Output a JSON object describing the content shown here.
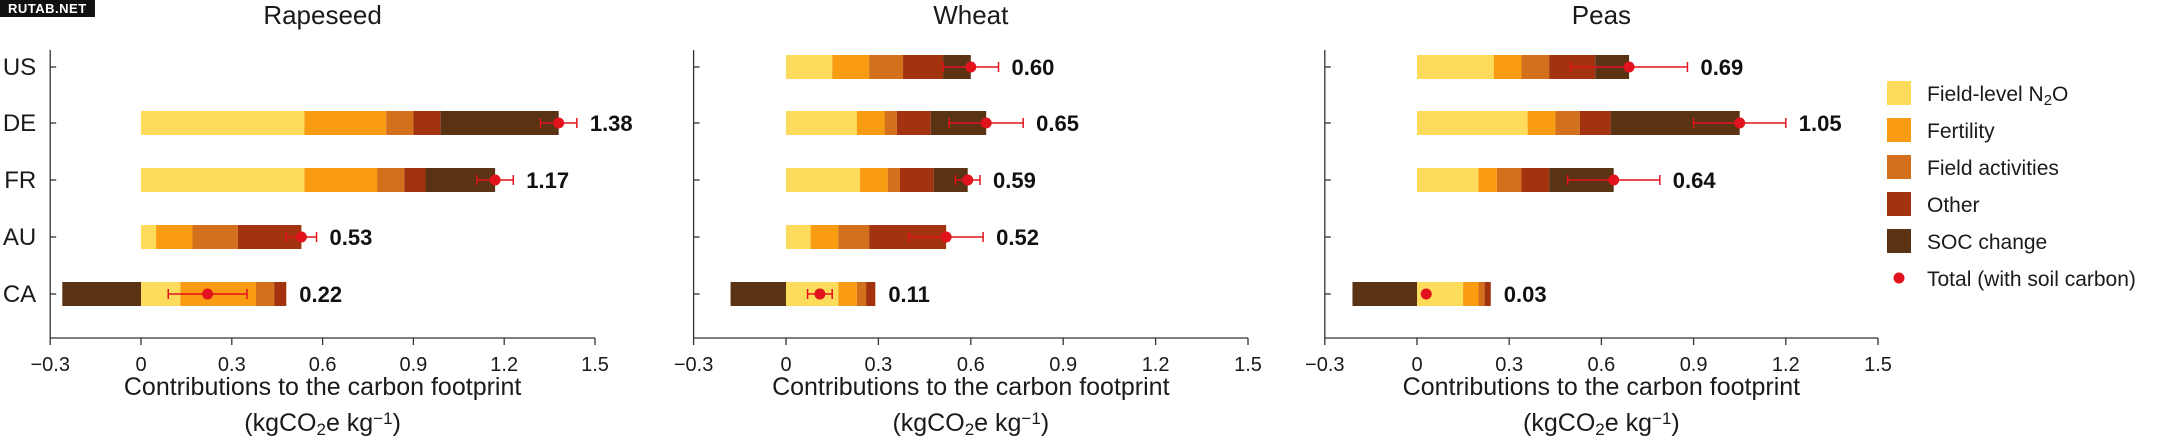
{
  "watermark": "RUTAB.NET",
  "colors": {
    "Field-level N2O": "#fddc5c",
    "Fertility": "#f99c12",
    "Field activities": "#d3701c",
    "Other": "#a2330e",
    "SOC change": "#5a3214",
    "Total (with soil carbon)": "#e2131d"
  },
  "legend": {
    "items": [
      {
        "label": "Field-level N",
        "sub": "2",
        "after": "O",
        "key": "Field-level N2O",
        "kind": "swatch"
      },
      {
        "label": "Fertility",
        "sub": "",
        "after": "",
        "key": "Fertility",
        "kind": "swatch"
      },
      {
        "label": "Field activities",
        "sub": "",
        "after": "",
        "key": "Field activities",
        "kind": "swatch"
      },
      {
        "label": "Other",
        "sub": "",
        "after": "",
        "key": "Other",
        "kind": "swatch"
      },
      {
        "label": "SOC change",
        "sub": "",
        "after": "",
        "key": "SOC change",
        "kind": "swatch"
      },
      {
        "label": "Total (with soil carbon)",
        "sub": "",
        "after": "",
        "key": "Total (with soil carbon)",
        "kind": "dot"
      }
    ]
  },
  "chart_data": [
    {
      "type": "bar",
      "orientation": "horizontal",
      "stacked": true,
      "title": "Rapeseed",
      "xlabel": "Contributions to the carbon footprint",
      "xlabel_unit": {
        "pre": "(kgCO",
        "sub": "2",
        "mid": "e kg",
        "sup": "−1",
        "post": ")"
      },
      "xlim": [
        -0.3,
        1.5
      ],
      "xticks": [
        "−0.3",
        "0",
        "0.3",
        "0.6",
        "0.9",
        "1.2",
        "1.5"
      ],
      "categories": [
        "US",
        "DE",
        "FR",
        "AU",
        "CA"
      ],
      "series": [
        {
          "name": "Field-level N2O",
          "values": [
            null,
            0.54,
            0.54,
            0.05,
            0.13
          ]
        },
        {
          "name": "Fertility",
          "values": [
            null,
            0.27,
            0.24,
            0.12,
            0.25
          ]
        },
        {
          "name": "Field activities",
          "values": [
            null,
            0.09,
            0.09,
            0.15,
            0.06
          ]
        },
        {
          "name": "Other",
          "values": [
            null,
            0.09,
            0.07,
            0.21,
            0.04
          ]
        },
        {
          "name": "SOC change",
          "values": [
            null,
            0.39,
            0.23,
            0.0,
            -0.26
          ]
        }
      ],
      "total": [
        null,
        1.38,
        1.17,
        0.53,
        0.22
      ],
      "error": [
        null,
        0.06,
        0.06,
        0.05,
        0.13
      ],
      "total_labels": [
        "",
        "1.38",
        "1.17",
        "0.53",
        "0.22"
      ]
    },
    {
      "type": "bar",
      "orientation": "horizontal",
      "stacked": true,
      "title": "Wheat",
      "xlabel": "Contributions to the carbon footprint",
      "xlabel_unit": {
        "pre": "(kgCO",
        "sub": "2",
        "mid": "e kg",
        "sup": "−1",
        "post": ")"
      },
      "xlim": [
        -0.3,
        1.5
      ],
      "xticks": [
        "−0.3",
        "0",
        "0.3",
        "0.6",
        "0.9",
        "1.2",
        "1.5"
      ],
      "categories": [
        "US",
        "DE",
        "FR",
        "AU",
        "CA"
      ],
      "series": [
        {
          "name": "Field-level N2O",
          "values": [
            0.15,
            0.23,
            0.24,
            0.08,
            0.17
          ]
        },
        {
          "name": "Fertility",
          "values": [
            0.12,
            0.09,
            0.09,
            0.09,
            0.06
          ]
        },
        {
          "name": "Field activities",
          "values": [
            0.11,
            0.04,
            0.04,
            0.1,
            0.03
          ]
        },
        {
          "name": "Other",
          "values": [
            0.13,
            0.11,
            0.11,
            0.25,
            0.03
          ]
        },
        {
          "name": "SOC change",
          "values": [
            0.09,
            0.18,
            0.11,
            0.0,
            -0.18
          ]
        }
      ],
      "total": [
        0.6,
        0.65,
        0.59,
        0.52,
        0.11
      ],
      "error": [
        0.09,
        0.12,
        0.04,
        0.12,
        0.04
      ],
      "total_labels": [
        "0.60",
        "0.65",
        "0.59",
        "0.52",
        "0.11"
      ]
    },
    {
      "type": "bar",
      "orientation": "horizontal",
      "stacked": true,
      "title": "Peas",
      "xlabel": "Contributions to the carbon footprint",
      "xlabel_unit": {
        "pre": "(kgCO",
        "sub": "2",
        "mid": "e kg",
        "sup": "−1",
        "post": ")"
      },
      "xlim": [
        -0.3,
        1.5
      ],
      "xticks": [
        "−0.3",
        "0",
        "0.3",
        "0.6",
        "0.9",
        "1.2",
        "1.5"
      ],
      "categories": [
        "US",
        "DE",
        "FR",
        "AU",
        "CA"
      ],
      "series": [
        {
          "name": "Field-level N2O",
          "values": [
            0.25,
            0.36,
            0.2,
            null,
            0.15
          ]
        },
        {
          "name": "Fertility",
          "values": [
            0.09,
            0.09,
            0.06,
            null,
            0.05
          ]
        },
        {
          "name": "Field activities",
          "values": [
            0.09,
            0.08,
            0.08,
            null,
            0.02
          ]
        },
        {
          "name": "Other",
          "values": [
            0.15,
            0.1,
            0.09,
            null,
            0.02
          ]
        },
        {
          "name": "SOC change",
          "values": [
            0.11,
            0.42,
            0.21,
            null,
            -0.21
          ]
        }
      ],
      "total": [
        0.69,
        1.05,
        0.64,
        null,
        0.03
      ],
      "error": [
        0.19,
        0.15,
        0.15,
        null,
        0.0
      ],
      "total_labels": [
        "0.69",
        "1.05",
        "0.64",
        "",
        "0.03"
      ]
    }
  ]
}
